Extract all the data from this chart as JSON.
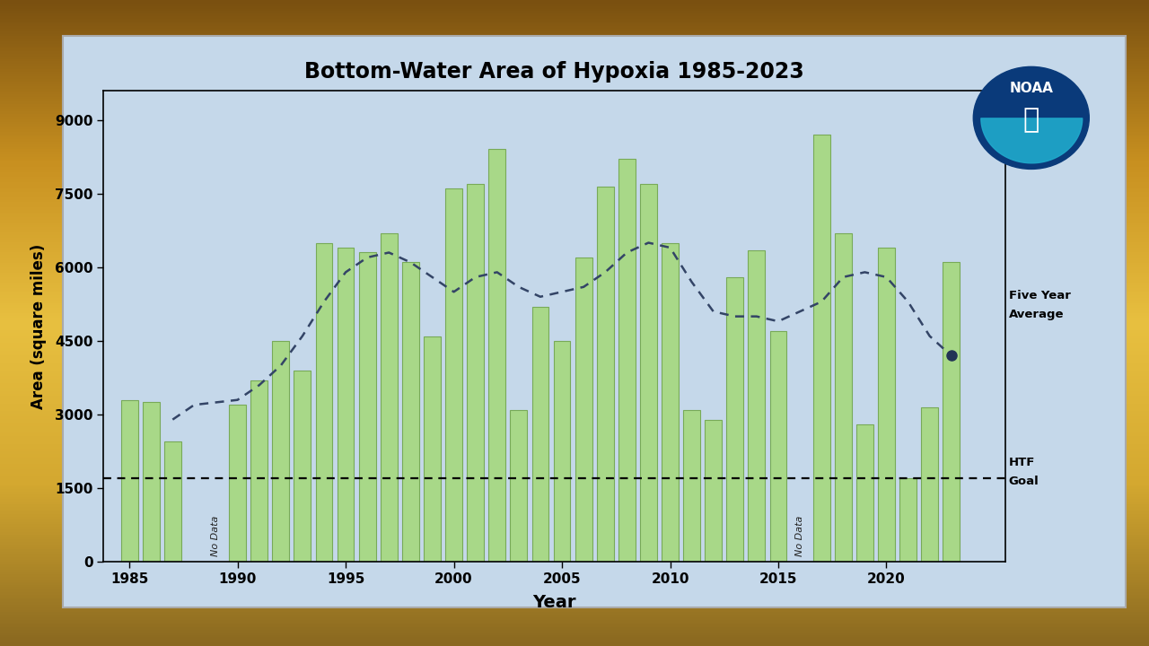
{
  "title": "Bottom-Water Area of Hypoxia 1985-2023",
  "xlabel": "Year",
  "ylabel": "Area (square miles)",
  "panel_color": "#c5d8ea",
  "bar_color": "#a8d888",
  "bar_edge_color": "#78aa58",
  "htf_goal": 1700,
  "years": [
    1985,
    1986,
    1987,
    1988,
    1989,
    1990,
    1991,
    1992,
    1993,
    1994,
    1995,
    1996,
    1997,
    1998,
    1999,
    2000,
    2001,
    2002,
    2003,
    2004,
    2005,
    2006,
    2007,
    2008,
    2009,
    2010,
    2011,
    2012,
    2013,
    2014,
    2015,
    2016,
    2017,
    2018,
    2019,
    2020,
    2021,
    2022,
    2023
  ],
  "values": [
    3300,
    3250,
    2450,
    0,
    0,
    3200,
    3700,
    4500,
    3900,
    6500,
    6400,
    6300,
    6700,
    6100,
    4600,
    7600,
    7700,
    8400,
    3100,
    5200,
    4500,
    6200,
    7650,
    8200,
    7700,
    6500,
    3100,
    2900,
    5800,
    6350,
    4700,
    0,
    8700,
    6700,
    2800,
    6400,
    1700,
    3150,
    6100
  ],
  "no_data_years": [
    1989,
    2016
  ],
  "five_year_avg_years": [
    1987,
    1988,
    1990,
    1991,
    1992,
    1993,
    1994,
    1995,
    1996,
    1997,
    1998,
    1999,
    2000,
    2001,
    2002,
    2003,
    2004,
    2005,
    2006,
    2007,
    2008,
    2009,
    2010,
    2011,
    2012,
    2013,
    2014,
    2015,
    2017,
    2018,
    2019,
    2020,
    2021,
    2022,
    2023
  ],
  "five_year_avg_vals": [
    2900,
    3200,
    3300,
    3600,
    4000,
    4600,
    5300,
    5900,
    6200,
    6300,
    6100,
    5800,
    5500,
    5800,
    5900,
    5600,
    5400,
    5500,
    5600,
    5900,
    6300,
    6500,
    6400,
    5700,
    5100,
    5000,
    5000,
    4900,
    5300,
    5800,
    5900,
    5800,
    5300,
    4600,
    4200
  ],
  "ylim": [
    0,
    9600
  ],
  "yticks": [
    0,
    1500,
    3000,
    4500,
    6000,
    7500,
    9000
  ],
  "xtick_years": [
    1985,
    1990,
    1995,
    2000,
    2005,
    2010,
    2015,
    2020
  ],
  "xlim_min": 1983.8,
  "xlim_max": 2025.5,
  "fig_bg_top": "#d4a030",
  "fig_bg_bottom": "#8a6020"
}
